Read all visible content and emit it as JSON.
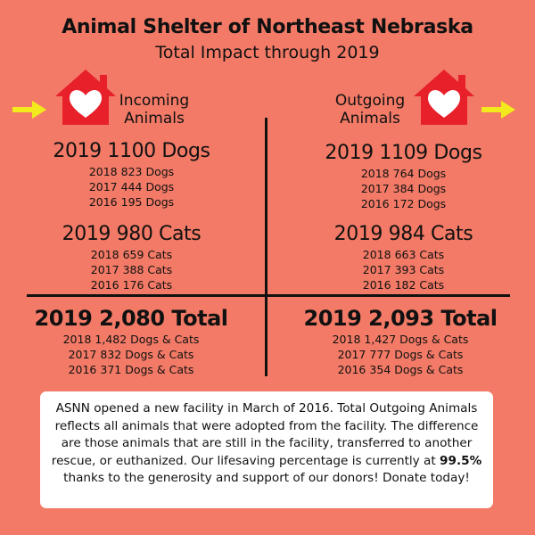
{
  "header": {
    "title": "Animal Shelter of Northeast Nebraska",
    "subtitle": "Total Impact through 2019"
  },
  "incoming": {
    "label_line1": "Incoming",
    "label_line2": "Animals",
    "dogs_main": "2019 1100 Dogs",
    "dogs_prior": [
      "2018 823 Dogs",
      "2017 444 Dogs",
      "2016 195 Dogs"
    ],
    "cats_main": "2019  980 Cats",
    "cats_prior": [
      "2018 659 Cats",
      "2017 388 Cats",
      "2016 176 Cats"
    ],
    "total_main": "2019  2,080 Total",
    "total_prior": [
      "2018 1,482 Dogs & Cats",
      "2017 832 Dogs & Cats",
      "2016 371 Dogs & Cats"
    ]
  },
  "outgoing": {
    "label_line1": "Outgoing",
    "label_line2": "Animals",
    "dogs_main": "2019  1109 Dogs",
    "dogs_prior": [
      "2018 764 Dogs",
      "2017 384 Dogs",
      "2016 172 Dogs"
    ],
    "cats_main": "2019  984 Cats",
    "cats_prior": [
      "2018 663 Cats",
      "2017 393 Cats",
      "2016 182 Cats"
    ],
    "total_main": "2019 2,093 Total",
    "total_prior": [
      "2018 1,427 Dogs & Cats",
      "2017 777 Dogs & Cats",
      "2016 354 Dogs & Cats"
    ]
  },
  "note": {
    "text_before": "ASNN opened a new facility in March of 2016.  Total Outgoing Animals reflects all animals that were adopted from the facility. The difference are those animals that are still in the facility, transferred to another rescue, or euthanized.  Our lifesaving percentage is currently at ",
    "highlight": "99.5%",
    "text_after": " thanks to the generosity and support of our donors!  Donate today!"
  },
  "colors": {
    "background": "#f27a66",
    "house": "#e8202a",
    "arrow": "#f2ea1c"
  },
  "icons": {
    "incoming_arrow": "arrow-right-icon",
    "incoming_house": "house-heart-icon",
    "outgoing_house": "house-heart-icon",
    "outgoing_arrow": "arrow-right-icon"
  }
}
